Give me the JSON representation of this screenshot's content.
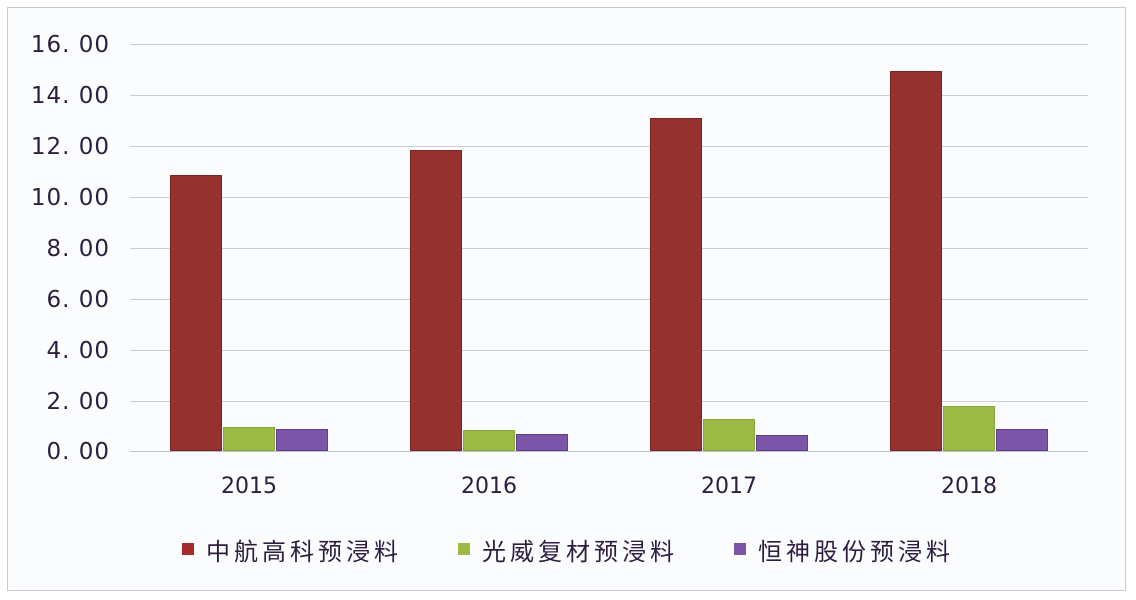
{
  "chart_data": {
    "type": "bar",
    "title": "",
    "xlabel": "",
    "ylabel": "",
    "categories": [
      "2015",
      "2016",
      "2017",
      "2018"
    ],
    "series": [
      {
        "name": "中航高科预浸料",
        "color": "#953230",
        "values": [
          10.85,
          11.81,
          13.07,
          14.92
        ]
      },
      {
        "name": "光威复材预浸料",
        "color": "#9bbb45",
        "values": [
          0.94,
          0.83,
          1.26,
          1.77
        ]
      },
      {
        "name": "恒神股份预浸料",
        "color": "#7b55a8",
        "values": [
          0.87,
          0.67,
          0.63,
          0.87
        ]
      }
    ],
    "ylim": [
      0,
      16
    ],
    "yticks": [
      "0.00",
      "2.00",
      "4.00",
      "6.00",
      "8.00",
      "10.00",
      "12.00",
      "14.00",
      "16.00"
    ],
    "grid": true,
    "legend_position": "bottom"
  },
  "axis": {
    "yticks": [
      "16. 00",
      "14. 00",
      "12. 00",
      "10. 00",
      "8. 00",
      "6. 00",
      "4. 00",
      "2. 00",
      "0. 00"
    ],
    "xticks": [
      "2015",
      "2016",
      "2017",
      "2018"
    ]
  },
  "legend": [
    {
      "label": "中航高科预浸料",
      "color": "#953230"
    },
    {
      "label": "光威复材预浸料",
      "color": "#9bbb45"
    },
    {
      "label": "恒神股份预浸料",
      "color": "#7b55a8"
    }
  ]
}
